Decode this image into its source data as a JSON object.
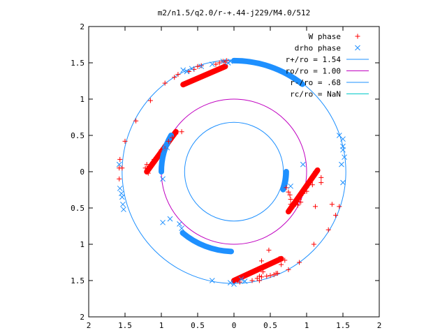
{
  "chart_data": {
    "type": "scatter",
    "title": "m2/n1.5/q2.0/r-+.44-j229/M4.0/512",
    "xlabel": "",
    "ylabel": "",
    "xlim": [
      -2,
      2
    ],
    "ylim": [
      -2,
      2
    ],
    "x_ticks": [
      {
        "v": -2,
        "label": "2"
      },
      {
        "v": -1.5,
        "label": "1.5"
      },
      {
        "v": -1,
        "label": "1"
      },
      {
        "v": -0.5,
        "label": "0.5"
      },
      {
        "v": 0,
        "label": "0"
      },
      {
        "v": 0.5,
        "label": "0.5"
      },
      {
        "v": 1,
        "label": "1"
      },
      {
        "v": 1.5,
        "label": "1.5"
      },
      {
        "v": 2,
        "label": "2"
      }
    ],
    "y_ticks": [
      {
        "v": 2,
        "label": "2"
      },
      {
        "v": 1.5,
        "label": "1.5"
      },
      {
        "v": 1,
        "label": "1"
      },
      {
        "v": 0.5,
        "label": "0.5"
      },
      {
        "v": 0,
        "label": "0"
      },
      {
        "v": -0.5,
        "label": "0.5"
      },
      {
        "v": -1,
        "label": "1"
      },
      {
        "v": -1.5,
        "label": "1.5"
      },
      {
        "v": -2,
        "label": "2"
      }
    ],
    "grid": false,
    "legend_position": "top-right",
    "series": [
      {
        "name": "W phase",
        "marker": "plus",
        "color": "#ff0000",
        "points": [
          [
            -1.5,
            0.42
          ],
          [
            -1.57,
            0.17
          ],
          [
            -1.58,
            0.05
          ],
          [
            -1.58,
            -0.1
          ],
          [
            -1.54,
            0.05
          ],
          [
            -1.35,
            0.7
          ],
          [
            -1.15,
            0.98
          ],
          [
            -0.95,
            1.22
          ],
          [
            -0.82,
            1.3
          ],
          [
            -0.77,
            1.34
          ],
          [
            -0.62,
            1.38
          ],
          [
            -0.55,
            1.41
          ],
          [
            -0.5,
            1.45
          ],
          [
            -0.45,
            1.46
          ],
          [
            -0.25,
            1.48
          ],
          [
            -0.2,
            1.5
          ],
          [
            -0.12,
            1.51
          ],
          [
            -0.1,
            1.53
          ],
          [
            -0.15,
            1.52
          ],
          [
            -1.22,
            0.05
          ],
          [
            -1.18,
            -0.02
          ],
          [
            -1.2,
            0.1
          ],
          [
            -1.1,
            0.12
          ],
          [
            -1.0,
            0.3
          ],
          [
            -0.9,
            0.42
          ],
          [
            -0.8,
            0.52
          ],
          [
            -0.72,
            0.55
          ],
          [
            -0.85,
            0.47
          ],
          [
            -0.95,
            0.32
          ],
          [
            -1.05,
            0.22
          ],
          [
            -1.1,
            0.17
          ],
          [
            -1.12,
            0.13
          ],
          [
            0.72,
            -0.22
          ],
          [
            0.75,
            -0.28
          ],
          [
            0.77,
            -0.32
          ],
          [
            0.78,
            -0.38
          ],
          [
            0.78,
            -0.45
          ],
          [
            0.8,
            -0.5
          ],
          [
            0.85,
            -0.45
          ],
          [
            0.9,
            -0.38
          ],
          [
            0.95,
            -0.3
          ],
          [
            1.0,
            -0.22
          ],
          [
            1.05,
            -0.15
          ],
          [
            1.1,
            -0.07
          ],
          [
            1.12,
            0.0
          ],
          [
            1.15,
            0.02
          ],
          [
            1.2,
            -0.08
          ],
          [
            1.0,
            -0.27
          ],
          [
            1.08,
            -0.18
          ],
          [
            0.92,
            -0.42
          ],
          [
            0.88,
            -0.46
          ],
          [
            1.12,
            -0.48
          ],
          [
            1.2,
            -0.15
          ],
          [
            1.35,
            -0.45
          ],
          [
            1.45,
            -0.48
          ],
          [
            1.4,
            -0.6
          ],
          [
            1.3,
            -0.8
          ],
          [
            1.1,
            -1.0
          ],
          [
            0.9,
            -1.25
          ],
          [
            0.75,
            -1.35
          ],
          [
            0.6,
            -1.4
          ],
          [
            0.55,
            -1.42
          ],
          [
            0.5,
            -1.43
          ],
          [
            0.45,
            -1.44
          ],
          [
            0.38,
            -1.45
          ],
          [
            0.32,
            -1.47
          ],
          [
            0.25,
            -1.5
          ],
          [
            0.35,
            -1.5
          ],
          [
            0.08,
            -1.52
          ],
          [
            0.05,
            -1.5
          ],
          [
            0.48,
            -1.08
          ],
          [
            0.62,
            -1.2
          ],
          [
            0.7,
            -1.22
          ],
          [
            0.55,
            -1.25
          ],
          [
            0.38,
            -1.23
          ],
          [
            0.58,
            -1.4
          ],
          [
            0.4,
            -1.38
          ],
          [
            0.35,
            -1.44
          ],
          [
            0.45,
            -1.3
          ],
          [
            0.65,
            -1.28
          ]
        ]
      },
      {
        "name": "drho phase",
        "marker": "cross",
        "color": "#1e90ff",
        "points": [
          [
            -1.58,
            0.1
          ],
          [
            -1.57,
            -0.23
          ],
          [
            -1.55,
            -0.3
          ],
          [
            -1.54,
            -0.35
          ],
          [
            -1.53,
            -0.45
          ],
          [
            -1.52,
            -0.52
          ],
          [
            -0.96,
            0.31
          ],
          [
            -0.92,
            0.33
          ],
          [
            -0.98,
            -0.1
          ],
          [
            -0.7,
            1.4
          ],
          [
            -0.65,
            1.38
          ],
          [
            -0.58,
            1.42
          ],
          [
            -0.45,
            1.45
          ],
          [
            -0.3,
            1.48
          ],
          [
            -0.15,
            1.52
          ],
          [
            -0.08,
            1.5
          ],
          [
            -0.05,
            1.52
          ],
          [
            1.45,
            0.5
          ],
          [
            1.5,
            0.45
          ],
          [
            1.5,
            0.35
          ],
          [
            1.5,
            0.3
          ],
          [
            1.48,
            0.1
          ],
          [
            1.52,
            0.2
          ],
          [
            1.5,
            -0.15
          ],
          [
            0.95,
            0.1
          ],
          [
            0.78,
            -0.2
          ],
          [
            -0.98,
            -0.7
          ],
          [
            -0.88,
            -0.65
          ],
          [
            -0.75,
            -0.72
          ],
          [
            -0.72,
            -0.78
          ],
          [
            0.1,
            -1.48
          ],
          [
            0.15,
            -1.51
          ],
          [
            0.0,
            -1.55
          ],
          [
            -0.3,
            -1.5
          ],
          [
            -0.05,
            -1.53
          ]
        ]
      }
    ],
    "dense_bands": {
      "W phase": [
        {
          "from": [
            -0.7,
            1.2
          ],
          "to": [
            -0.12,
            1.45
          ],
          "note": "red band upper"
        },
        {
          "from": [
            -1.2,
            0.0
          ],
          "to": [
            -0.8,
            0.55
          ],
          "note": "red band left"
        },
        {
          "from": [
            0.75,
            -0.55
          ],
          "to": [
            1.15,
            0.02
          ],
          "note": "red band right"
        },
        {
          "from": [
            0.0,
            -1.5
          ],
          "to": [
            0.65,
            -1.2
          ],
          "note": "red band lower"
        }
      ],
      "drho phase": [
        {
          "arc_r": 1.53,
          "from_deg": 90,
          "to_deg": 52,
          "note": "blue band upper"
        },
        {
          "arc_r": 1.0,
          "from_deg": 150,
          "to_deg": 180,
          "note": "blue band left"
        },
        {
          "arc_r": 0.72,
          "from_deg": 0,
          "to_deg": -20,
          "note": "blue band right"
        },
        {
          "arc_r": 1.1,
          "from_deg": 230,
          "to_deg": 268,
          "note": "blue band lower"
        }
      ]
    },
    "circles": [
      {
        "label": "r+/ro = 1.54",
        "r": 1.54,
        "color": "#1e90ff"
      },
      {
        "label": "ro/ro = 1.00",
        "r": 1.0,
        "color": "#c000c0"
      },
      {
        "label": "r-/ro = .68",
        "r": 0.68,
        "color": "#1e90ff"
      },
      {
        "label": "rc/ro = NaN",
        "r": null,
        "color": "#00c8c8"
      }
    ]
  }
}
